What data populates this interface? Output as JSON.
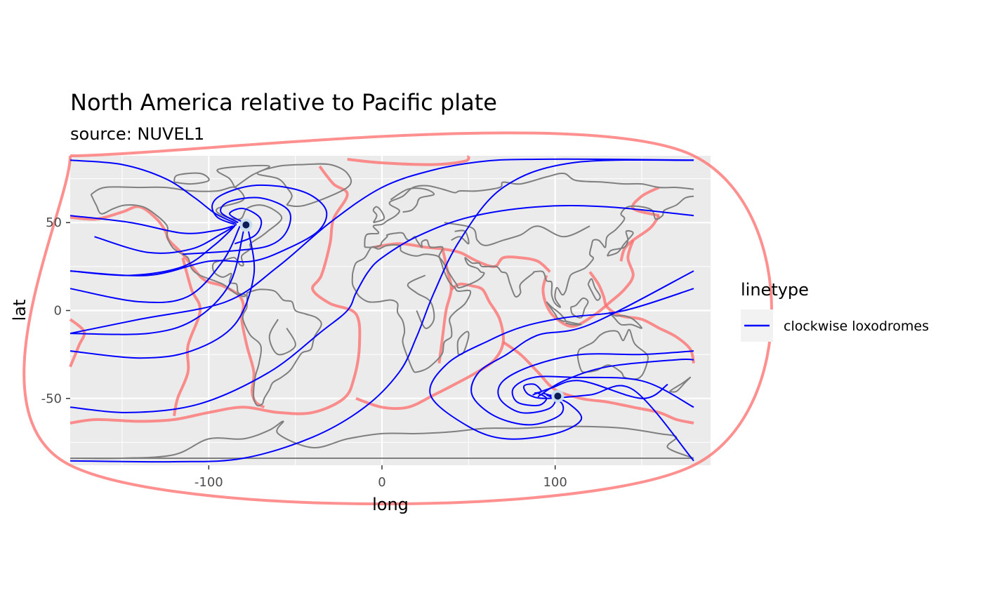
{
  "chart_data": {
    "type": "line",
    "title": "North America relative to Pacific plate",
    "subtitle": "source: NUVEL1",
    "xlabel": "long",
    "ylabel": "lat",
    "xlim": [
      -180,
      180
    ],
    "ylim": [
      -88,
      88
    ],
    "x_ticks": [
      -100,
      0,
      100
    ],
    "y_ticks": [
      -50,
      0,
      50
    ],
    "grid": true,
    "legend": {
      "title": "linetype",
      "placement": "right",
      "entries": [
        "clockwise loxodromes"
      ]
    },
    "colors": {
      "panel": "#ebebeb",
      "grid": "#ffffff",
      "coastlines": "#7f7f7f",
      "plate_boundaries": "#ff6b6b",
      "loxodromes": "#0000ff",
      "pole_fill": "#0d1b57",
      "pole_halo": "#c8dcf0"
    },
    "poles": [
      {
        "long": -78.5,
        "lat": 48.7
      },
      {
        "long": 101.5,
        "lat": -48.7
      }
    ],
    "series": [
      {
        "name": "clockwise loxodromes",
        "lines": [
          [
            [
              -180,
              85.5
            ],
            [
              -150,
              83
            ],
            [
              -125,
              75
            ],
            [
              -108,
              64
            ],
            [
              -96,
              55
            ],
            [
              -84,
              49.5
            ]
          ],
          [
            [
              -180,
              54
            ],
            [
              -145,
              50
            ],
            [
              -115,
              44
            ],
            [
              -96,
              45.5
            ],
            [
              -86,
              48
            ]
          ],
          [
            [
              -166,
              42
            ],
            [
              -135,
              33
            ],
            [
              -110,
              35
            ],
            [
              -92,
              44
            ],
            [
              -84,
              49
            ]
          ],
          [
            [
              -180,
              22.5
            ],
            [
              -145,
              20
            ],
            [
              -115,
              25
            ],
            [
              -97,
              37
            ],
            [
              -85,
              48
            ]
          ],
          [
            [
              -180,
              12.5
            ],
            [
              -140,
              5
            ],
            [
              -112,
              8
            ],
            [
              -92,
              28
            ],
            [
              -82,
              48
            ]
          ],
          [
            [
              -180,
              -13
            ],
            [
              -135,
              -13
            ],
            [
              -108,
              -5
            ],
            [
              -88,
              15
            ],
            [
              -80,
              45
            ]
          ],
          [
            [
              -180,
              -23
            ],
            [
              -140,
              -27
            ],
            [
              -110,
              -23
            ],
            [
              -85,
              -8
            ],
            [
              -74,
              20
            ],
            [
              -77,
              45
            ]
          ],
          [
            [
              -180,
              -55
            ],
            [
              -145,
              -58
            ],
            [
              -105,
              -53
            ],
            [
              -65,
              -35
            ],
            [
              -35,
              -12
            ],
            [
              -20,
              0
            ],
            [
              -15,
              10
            ],
            [
              -8,
              22
            ],
            [
              0,
              30
            ],
            [
              20,
              42
            ],
            [
              50,
              53
            ],
            [
              90,
              59
            ],
            [
              130,
              59
            ],
            [
              180,
              54
            ]
          ],
          [
            [
              -180,
              -85.5
            ],
            [
              -120,
              -86
            ],
            [
              -80,
              -84
            ],
            [
              -40,
              -72
            ],
            [
              -10,
              -55
            ],
            [
              10,
              -35
            ],
            [
              20,
              -15
            ],
            [
              30,
              10
            ],
            [
              45,
              40
            ],
            [
              70,
              70
            ],
            [
              110,
              84
            ],
            [
              180,
              85.5
            ]
          ],
          [
            [
              -85,
              49
            ],
            [
              -95,
              53
            ],
            [
              -98,
              60
            ],
            [
              -92,
              66
            ],
            [
              -75,
              71
            ],
            [
              -55,
              70
            ],
            [
              -40,
              65
            ],
            [
              -32,
              56
            ],
            [
              -37,
              45
            ],
            [
              -55,
              35
            ],
            [
              -75,
              28
            ],
            [
              -100,
              28
            ],
            [
              -135,
              20
            ],
            [
              -180,
              22.5
            ]
          ],
          [
            [
              -83,
              50
            ],
            [
              -93,
              56
            ],
            [
              -88,
              62
            ],
            [
              -70,
              64
            ],
            [
              -54,
              57
            ],
            [
              -55,
              45
            ],
            [
              -65,
              37
            ],
            [
              -85,
              34
            ],
            [
              -115,
              32
            ]
          ],
          [
            [
              -80,
              50
            ],
            [
              -88,
              55
            ],
            [
              -80,
              58
            ],
            [
              -70,
              52
            ],
            [
              -73,
              43
            ],
            [
              -85,
              38
            ]
          ],
          [
            [
              180,
              85.5
            ],
            [
              130,
              86
            ],
            [
              90,
              86
            ],
            [
              60,
              85
            ],
            [
              30,
              80
            ],
            [
              0,
              70
            ],
            [
              -30,
              50
            ],
            [
              -60,
              25
            ],
            [
              -90,
              5
            ],
            [
              -140,
              -5
            ],
            [
              -180,
              -13
            ]
          ],
          [
            [
              97,
              -48
            ],
            [
              108,
              -53
            ],
            [
              115,
              -62
            ],
            [
              100,
              -70
            ],
            [
              72,
              -73
            ],
            [
              50,
              -66
            ],
            [
              28,
              -48
            ],
            [
              38,
              -30
            ],
            [
              62,
              -17
            ],
            [
              82,
              -9
            ],
            [
              106,
              -4
            ],
            [
              140,
              0
            ],
            [
              180,
              12.5
            ]
          ],
          [
            [
              95,
              -48
            ],
            [
              104,
              -53
            ],
            [
              102,
              -60
            ],
            [
              85,
              -65
            ],
            [
              65,
              -60
            ],
            [
              52,
              -48
            ],
            [
              56,
              -35
            ],
            [
              72,
              -25
            ],
            [
              90,
              -14
            ],
            [
              120,
              -8
            ],
            [
              180,
              22.5
            ]
          ],
          [
            [
              93,
              -47
            ],
            [
              100,
              -50
            ],
            [
              96,
              -56
            ],
            [
              80,
              -58
            ],
            [
              68,
              -50
            ],
            [
              70,
              -40
            ],
            [
              88,
              -31
            ],
            [
              115,
              -25
            ],
            [
              150,
              -25
            ],
            [
              180,
              -23
            ]
          ],
          [
            [
              90,
              -47
            ],
            [
              95,
              -50
            ],
            [
              90,
              -54
            ],
            [
              78,
              -52
            ],
            [
              76,
              -44
            ],
            [
              88,
              -38
            ],
            [
              110,
              -38
            ],
            [
              150,
              -40
            ],
            [
              180,
              -55
            ]
          ],
          [
            [
              88,
              -47
            ],
            [
              92,
              -46
            ],
            [
              88,
              -42
            ],
            [
              82,
              -43
            ],
            [
              85,
              -48
            ],
            [
              95,
              -50
            ],
            [
              120,
              -48
            ],
            [
              145,
              -45
            ],
            [
              180,
              -85.5
            ]
          ],
          [
            [
              87,
              -48
            ],
            [
              98,
              -44
            ],
            [
              115,
              -40
            ],
            [
              150,
              -50
            ],
            [
              165,
              -42
            ]
          ],
          [
            [
              90,
              -49
            ],
            [
              105,
              -40
            ],
            [
              130,
              -32
            ],
            [
              170,
              -28
            ],
            [
              180,
              -28
            ]
          ]
        ]
      }
    ]
  }
}
